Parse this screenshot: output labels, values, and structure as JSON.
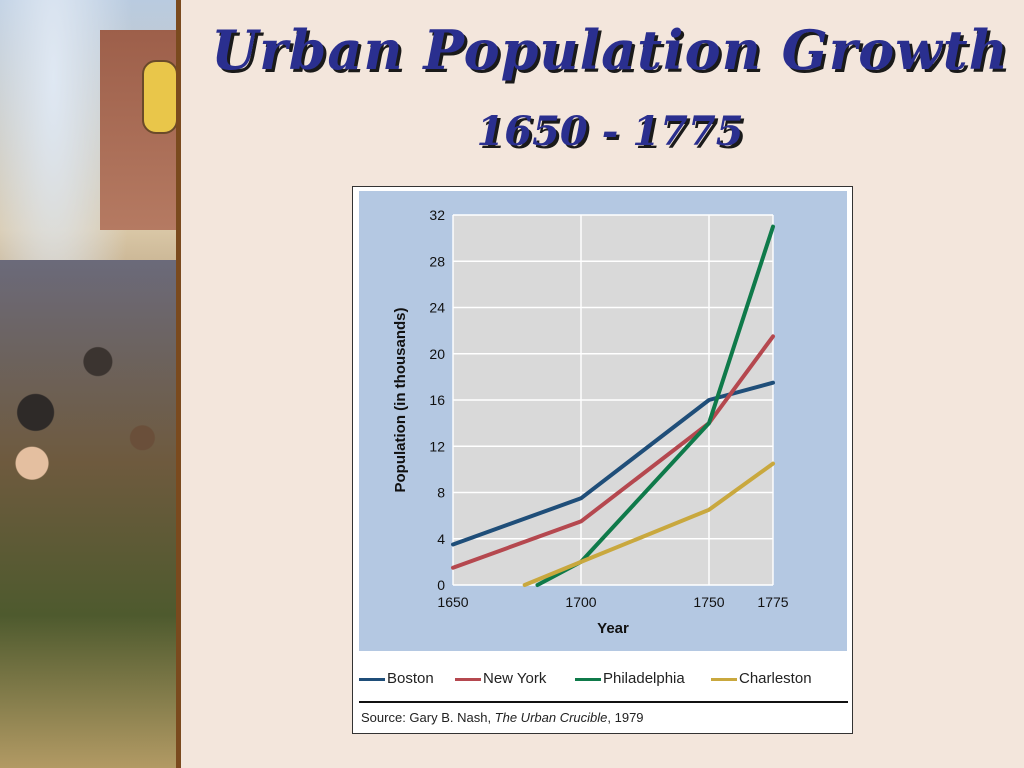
{
  "slide": {
    "title": "Urban Population Growth",
    "subtitle": "1650 - 1775"
  },
  "chart_data": {
    "type": "line",
    "x": [
      1650,
      1700,
      1750,
      1775
    ],
    "x_ticks": [
      "1650",
      "1700",
      "1750",
      "1775"
    ],
    "y_ticks": [
      "0",
      "4",
      "8",
      "12",
      "16",
      "20",
      "24",
      "28",
      "32"
    ],
    "xlim": [
      1650,
      1775
    ],
    "ylim": [
      0,
      32
    ],
    "xlabel": "Year",
    "ylabel": "Population (in thousands)",
    "grid": true,
    "legend_position": "bottom",
    "series": [
      {
        "name": "Boston",
        "color": "#1f4e79",
        "points": [
          [
            1650,
            3.5
          ],
          [
            1700,
            7.5
          ],
          [
            1750,
            16
          ],
          [
            1775,
            17.5
          ]
        ]
      },
      {
        "name": "New York",
        "color": "#b5484f",
        "points": [
          [
            1650,
            1.5
          ],
          [
            1700,
            5.5
          ],
          [
            1750,
            14
          ],
          [
            1775,
            21.5
          ]
        ]
      },
      {
        "name": "Philadelphia",
        "color": "#0f7a4a",
        "points": [
          [
            1683,
            0
          ],
          [
            1700,
            2
          ],
          [
            1750,
            14
          ],
          [
            1775,
            31
          ]
        ]
      },
      {
        "name": "Charleston",
        "color": "#c9a83e",
        "points": [
          [
            1678,
            0
          ],
          [
            1700,
            2
          ],
          [
            1750,
            6.5
          ],
          [
            1775,
            10.5
          ]
        ]
      }
    ],
    "source_prefix": "Source: Gary B. Nash, ",
    "source_book": "The Urban Crucible",
    "source_suffix": ", 1979"
  }
}
